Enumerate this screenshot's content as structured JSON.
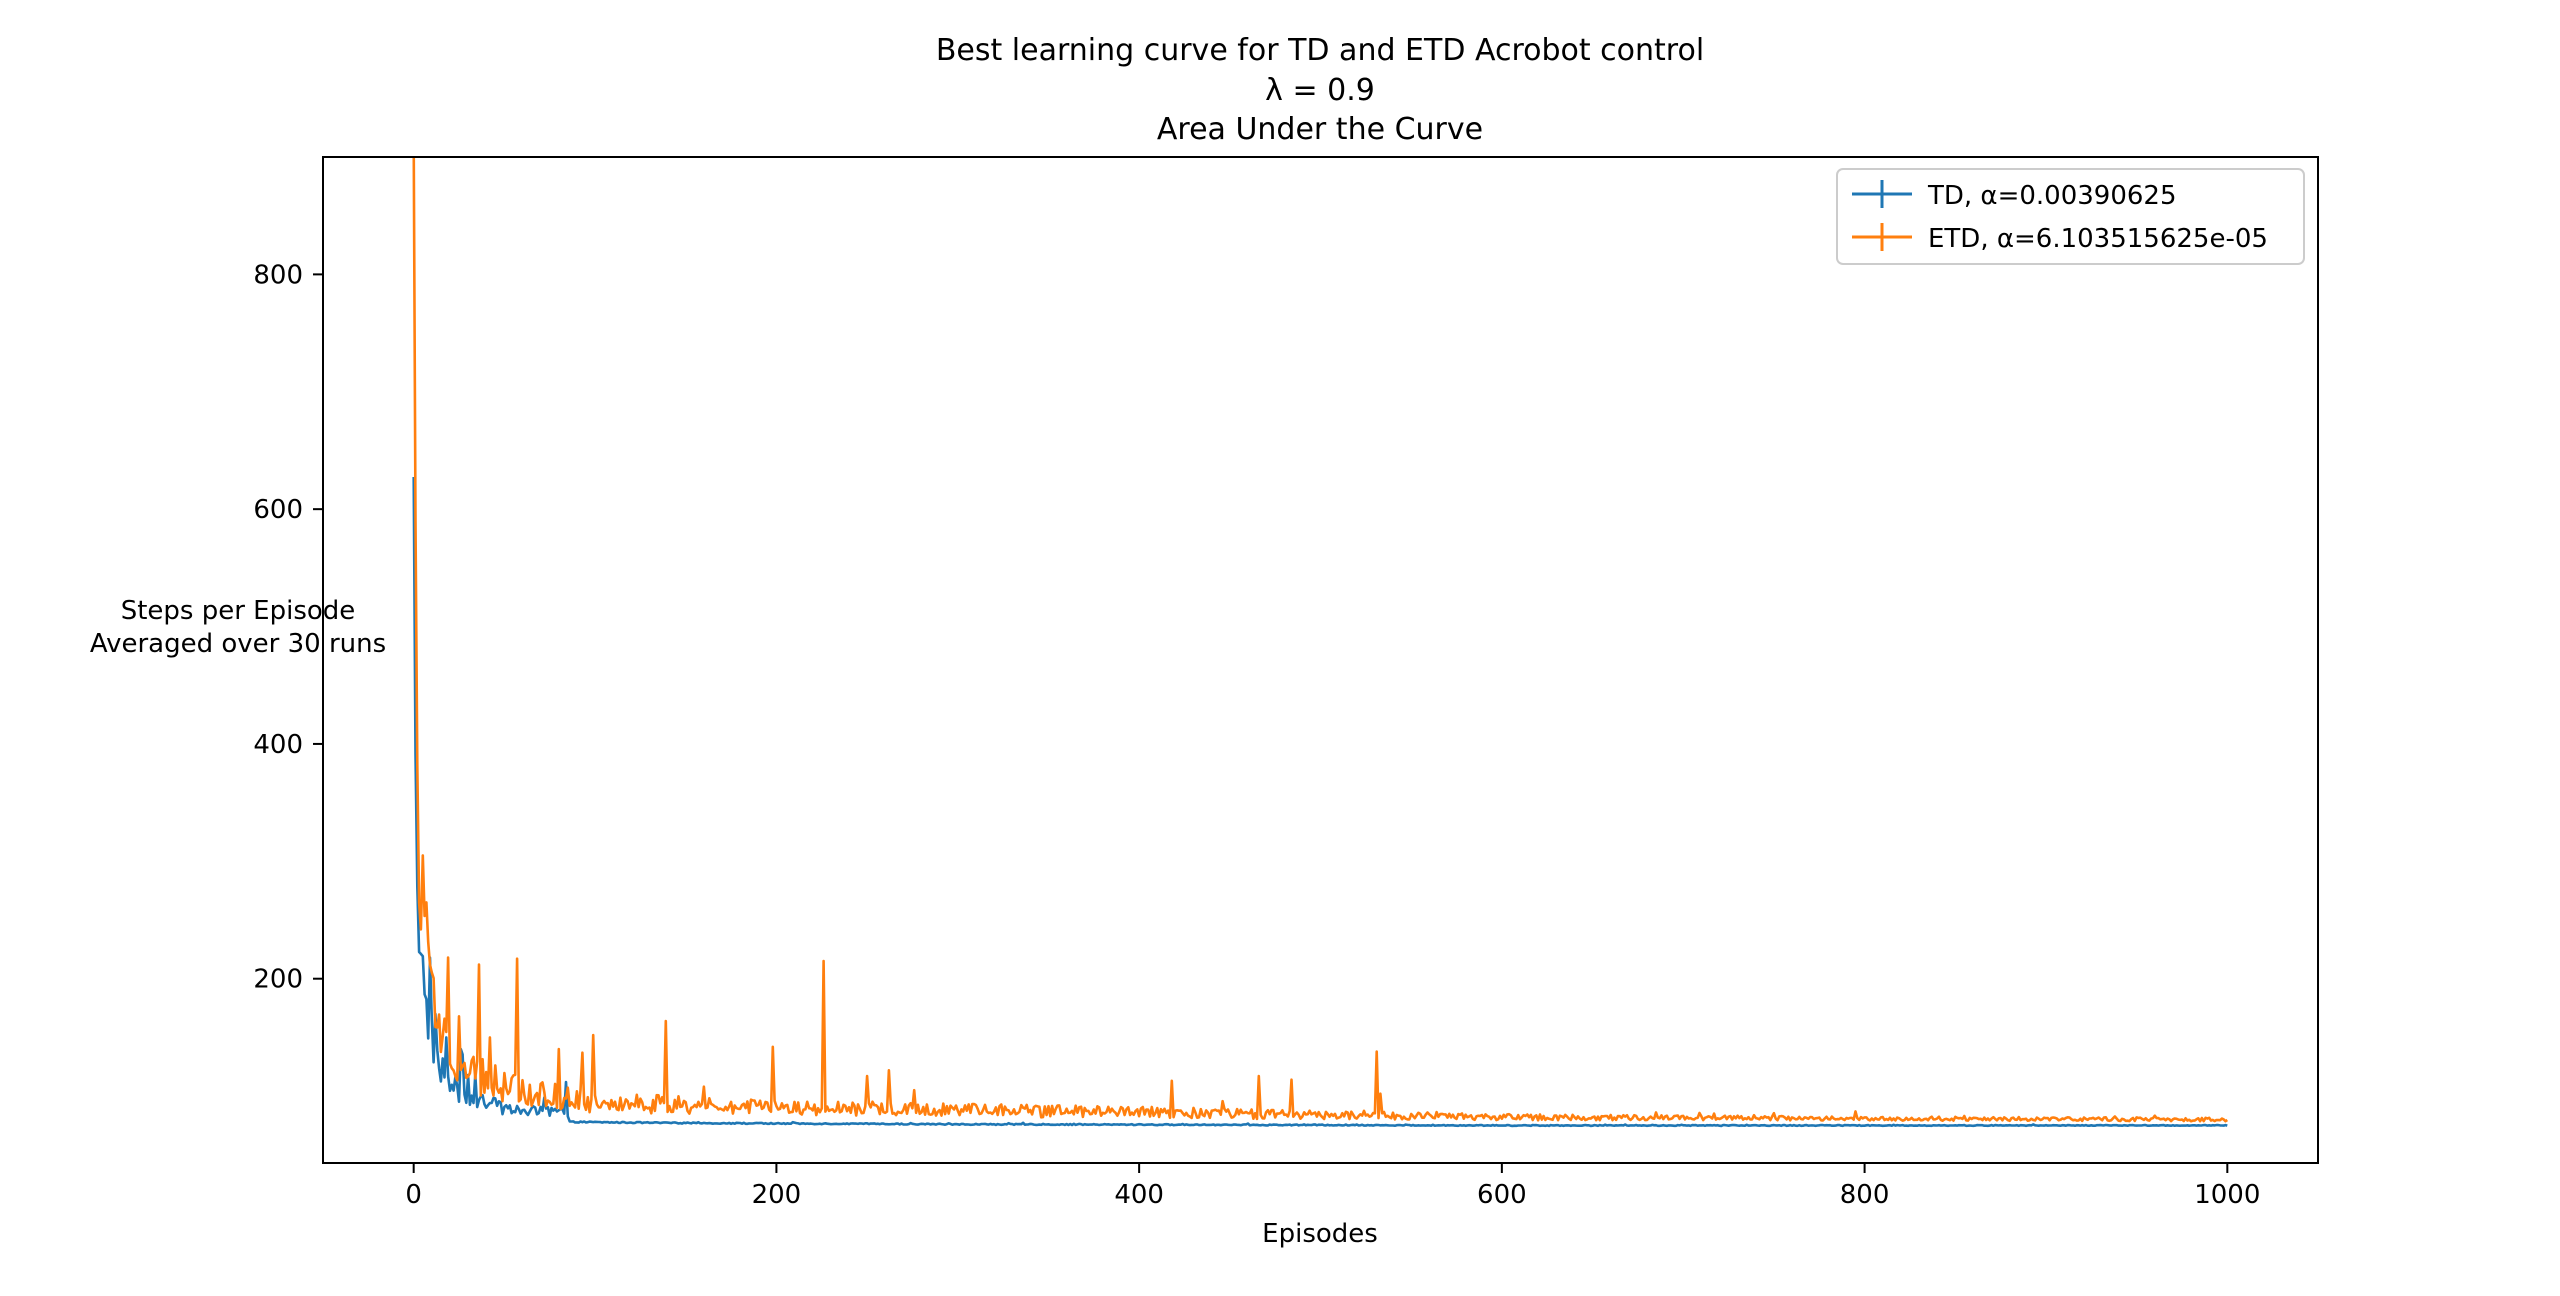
{
  "chart_data": {
    "type": "line",
    "title_lines": [
      "Best learning curve for TD and ETD Acrobot control",
      "λ = 0.9",
      "Area Under the Curve"
    ],
    "xlabel": "Episodes",
    "ylabel_lines": [
      "Steps per Episode",
      "Averaged over 30 runs"
    ],
    "xlim": [
      -50,
      1050
    ],
    "ylim": [
      43,
      900
    ],
    "xticks": [
      0,
      200,
      400,
      600,
      800,
      1000
    ],
    "yticks": [
      200,
      400,
      600,
      800
    ],
    "legend_position": "top-right",
    "grid": false,
    "series": [
      {
        "name": "TD, α=0.00390625",
        "color": "#1f77b4",
        "anchors": [
          [
            0,
            645
          ],
          [
            1,
            400
          ],
          [
            2,
            290
          ],
          [
            3,
            240
          ],
          [
            5,
            205
          ],
          [
            7,
            175
          ],
          [
            10,
            150
          ],
          [
            14,
            125
          ],
          [
            20,
            110
          ],
          [
            30,
            100
          ],
          [
            40,
            93
          ],
          [
            55,
            88
          ],
          [
            70,
            86
          ],
          [
            84,
            86
          ],
          [
            86,
            78
          ],
          [
            150,
            77
          ],
          [
            300,
            76
          ],
          [
            600,
            75
          ],
          [
            1000,
            75
          ]
        ],
        "noise": [
          [
            0,
            30
          ],
          [
            10,
            18
          ],
          [
            30,
            9
          ],
          [
            60,
            5
          ],
          [
            84,
            6
          ],
          [
            86,
            0.5
          ],
          [
            1000,
            0.3
          ]
        ],
        "spikes": [
          [
            9,
            218
          ],
          [
            12,
            170
          ],
          [
            18,
            150
          ],
          [
            26,
            140
          ],
          [
            34,
            118
          ],
          [
            45,
            98
          ],
          [
            84,
            112
          ]
        ]
      },
      {
        "name": "ETD, α=6.103515625e-05",
        "color": "#ff7f0e",
        "anchors": [
          [
            0,
            900
          ],
          [
            1,
            620
          ],
          [
            2,
            400
          ],
          [
            3,
            300
          ],
          [
            5,
            240
          ],
          [
            8,
            200
          ],
          [
            12,
            165
          ],
          [
            18,
            140
          ],
          [
            25,
            128
          ],
          [
            35,
            118
          ],
          [
            50,
            108
          ],
          [
            70,
            100
          ],
          [
            100,
            95
          ],
          [
            150,
            92
          ],
          [
            200,
            90
          ],
          [
            300,
            88
          ],
          [
            400,
            86
          ],
          [
            500,
            84
          ],
          [
            600,
            82
          ],
          [
            800,
            81
          ],
          [
            1000,
            80
          ]
        ],
        "noise": [
          [
            0,
            40
          ],
          [
            20,
            20
          ],
          [
            50,
            14
          ],
          [
            100,
            9
          ],
          [
            200,
            6
          ],
          [
            400,
            5
          ],
          [
            550,
            3
          ],
          [
            700,
            2
          ],
          [
            1000,
            1.5
          ]
        ],
        "spikes": [
          [
            5,
            305
          ],
          [
            7,
            265
          ],
          [
            19,
            218
          ],
          [
            25,
            168
          ],
          [
            36,
            212
          ],
          [
            42,
            150
          ],
          [
            57,
            217
          ],
          [
            80,
            140
          ],
          [
            93,
            137
          ],
          [
            99,
            152
          ],
          [
            139,
            164
          ],
          [
            160,
            108
          ],
          [
            198,
            142
          ],
          [
            226,
            215
          ],
          [
            250,
            117
          ],
          [
            262,
            122
          ],
          [
            276,
            105
          ],
          [
            418,
            113
          ],
          [
            466,
            117
          ],
          [
            484,
            114
          ],
          [
            531,
            138
          ],
          [
            533,
            102
          ]
        ]
      }
    ]
  }
}
